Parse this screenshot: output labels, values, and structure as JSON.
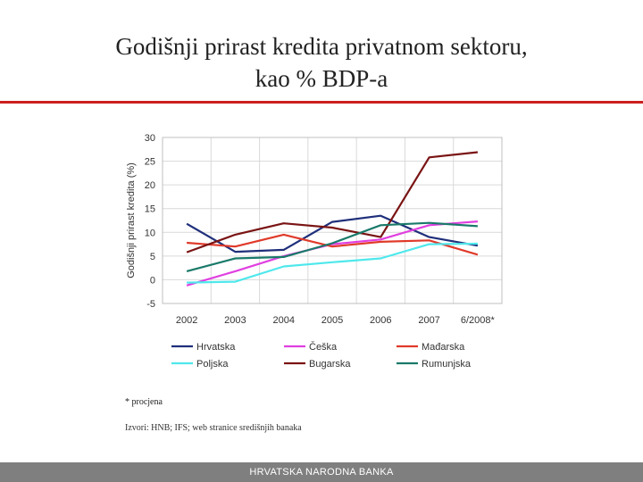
{
  "slide": {
    "title_line1": "Godišnji prirast kredita privatnom sektoru,",
    "title_line2": "kao % BDP-a",
    "footnote": "* procjena",
    "source": "Izvori: HNB; IFS; web stranice središnjih banaka",
    "footer": "HRVATSKA NARODNA BANKA",
    "accent_color": "#cc1f1f"
  },
  "chart_data": {
    "type": "line",
    "title": "",
    "xlabel": "",
    "ylabel": "Godišnji prirast kredita (%)",
    "categories": [
      "2002",
      "2003",
      "2004",
      "2005",
      "2006",
      "2007",
      "6/2008*"
    ],
    "ylim": [
      -5,
      30
    ],
    "yticks": [
      -5,
      0,
      5,
      10,
      15,
      20,
      25,
      30
    ],
    "legend_position": "bottom",
    "series": [
      {
        "name": "Hrvatska",
        "color": "#1f2f7a",
        "values": [
          11.8,
          5.9,
          6.3,
          12.2,
          13.5,
          9.0,
          7.2
        ]
      },
      {
        "name": "Češka",
        "color": "#e040e0",
        "values": [
          -1.2,
          1.8,
          5.0,
          7.5,
          8.5,
          11.5,
          12.3
        ]
      },
      {
        "name": "Mađarska",
        "color": "#e03a2a",
        "values": [
          7.8,
          7.0,
          9.5,
          7.0,
          8.0,
          8.3,
          5.3
        ]
      },
      {
        "name": "Poljska",
        "color": "#4fe8ec",
        "values": [
          -0.6,
          -0.4,
          2.8,
          3.7,
          4.5,
          7.5,
          7.6
        ]
      },
      {
        "name": "Bugarska",
        "color": "#7a1414",
        "values": [
          5.8,
          9.5,
          11.9,
          11.0,
          9.0,
          25.8,
          26.9
        ]
      },
      {
        "name": "Rumunjska",
        "color": "#1a7a6a",
        "values": [
          1.8,
          4.5,
          4.8,
          7.7,
          11.5,
          12.0,
          11.3
        ]
      }
    ]
  }
}
